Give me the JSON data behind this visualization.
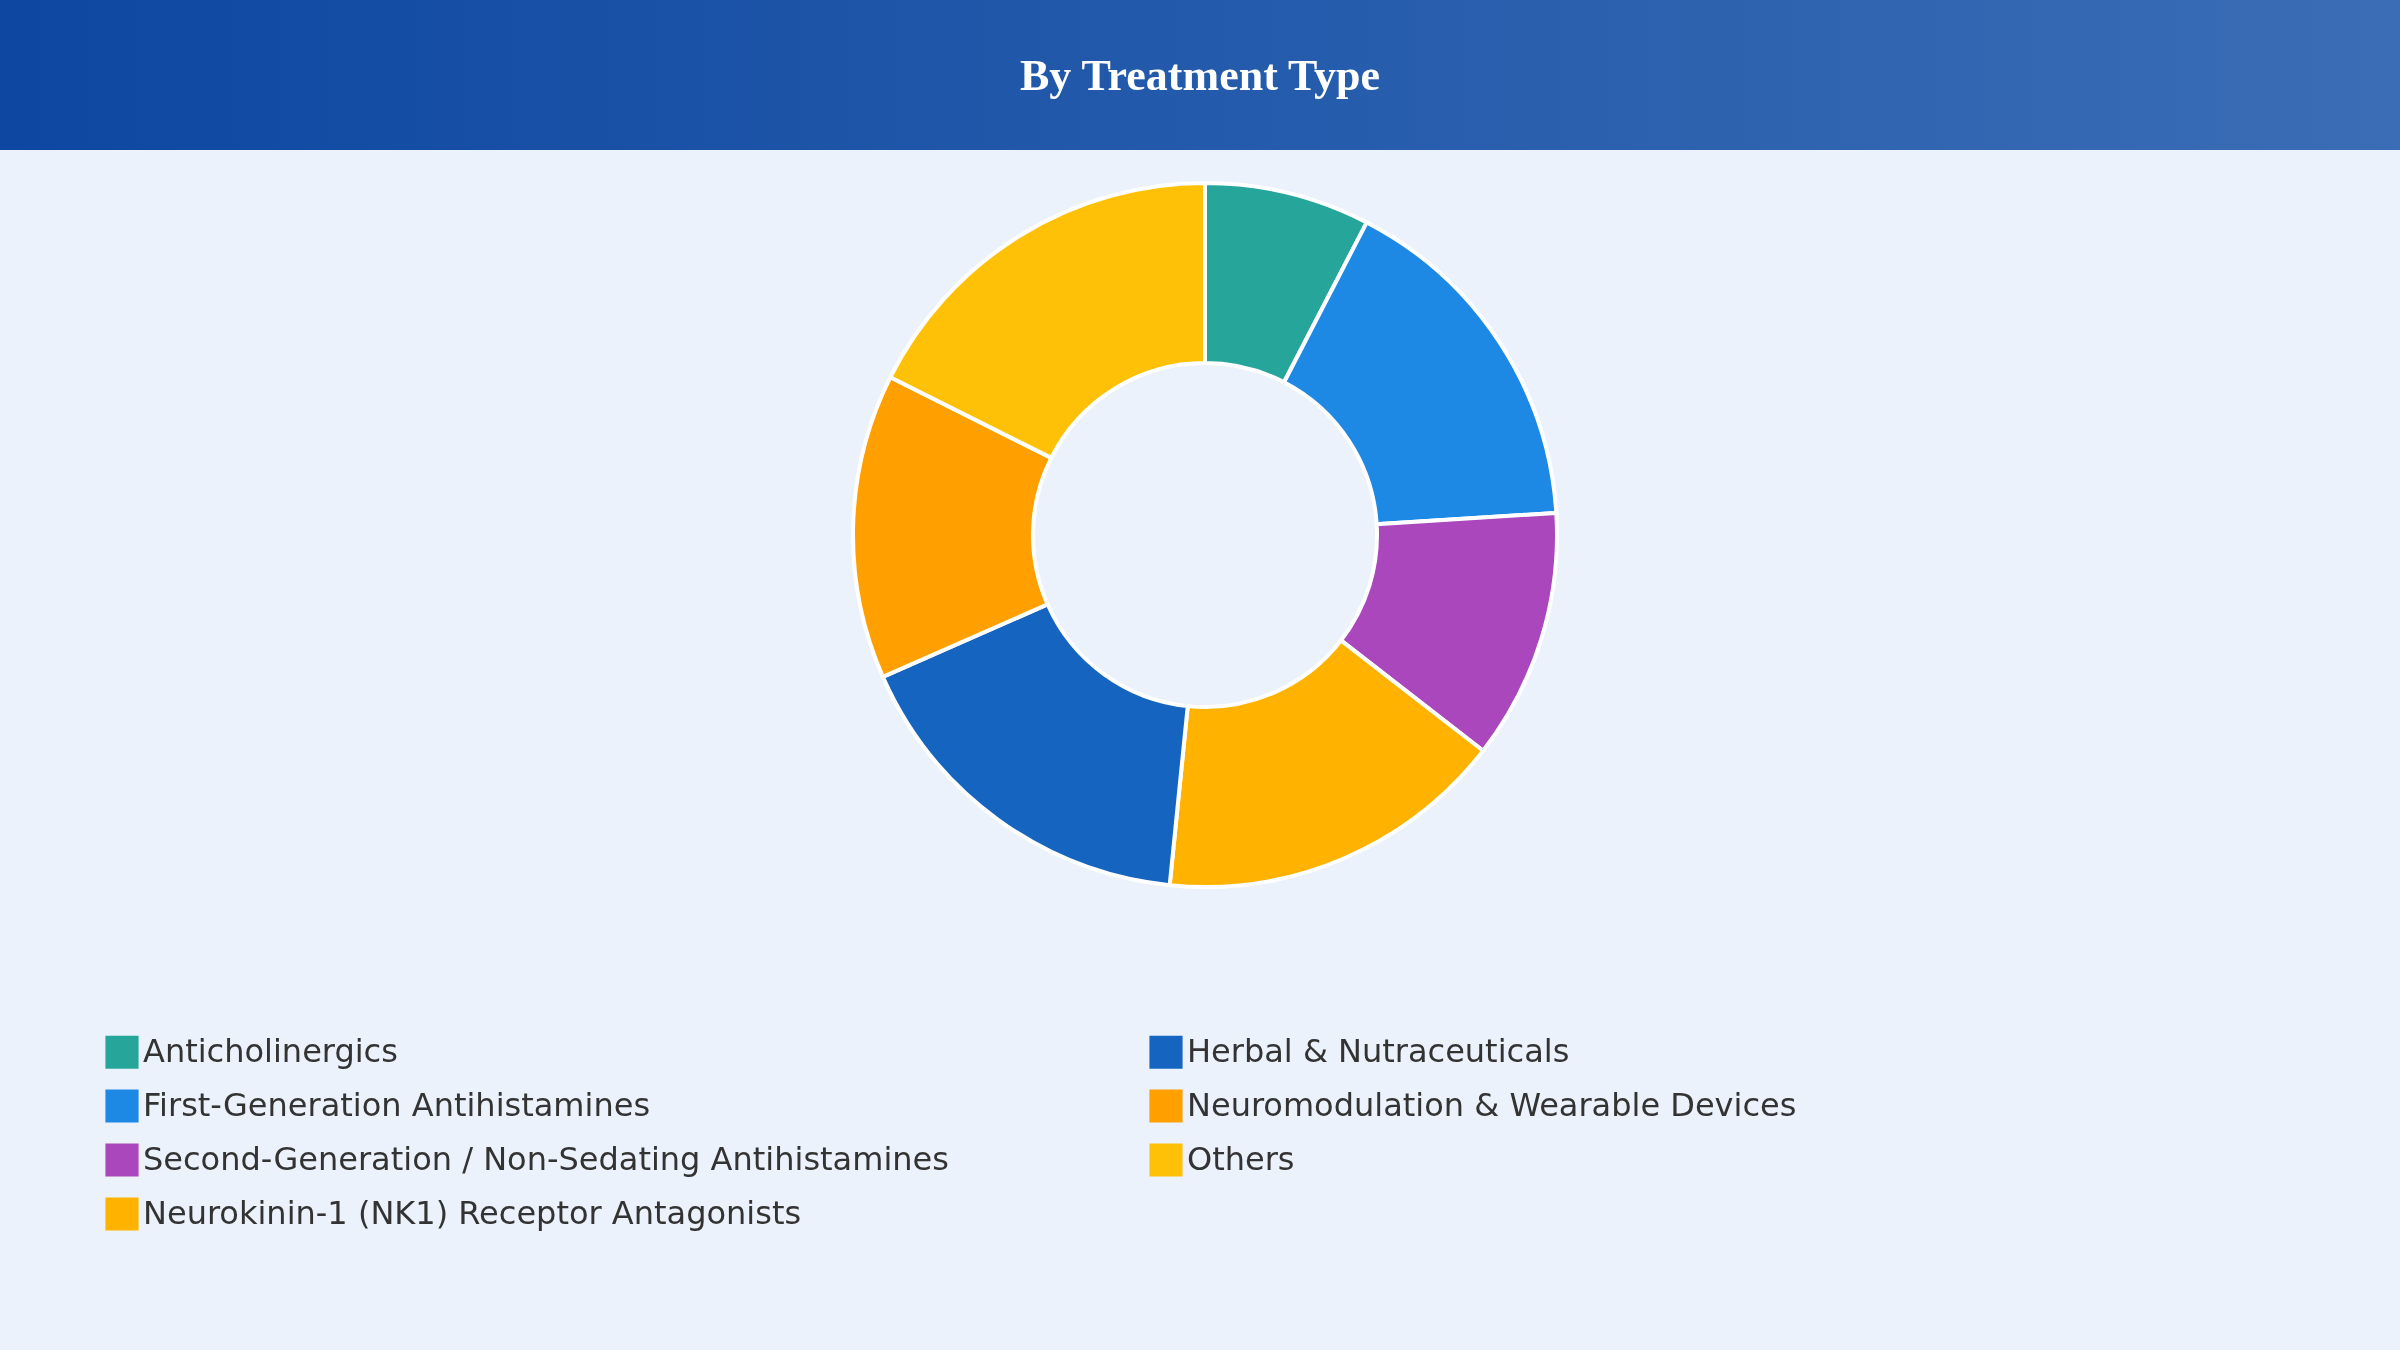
{
  "chart_data": {
    "type": "donut",
    "title": "By Treatment Type",
    "categories": [
      "Anticholinergics",
      "First-Generation Antihistamines",
      "Second-Generation / Non-Sedating Antihistamines",
      "Neurokinin-1 (NK1) Receptor Antagonists",
      "Herbal & Nutraceuticals",
      "Neuromodulation & Wearable Devices",
      "Others"
    ],
    "values": [
      7.6,
      16.4,
      11.5,
      16.1,
      16.8,
      14.0,
      17.6
    ],
    "colors": [
      "#26a69a",
      "#1e88e5",
      "#ab47bc",
      "#ffb300",
      "#1565c0",
      "#ffa000",
      "#ffc107"
    ],
    "legend": "bottom"
  }
}
